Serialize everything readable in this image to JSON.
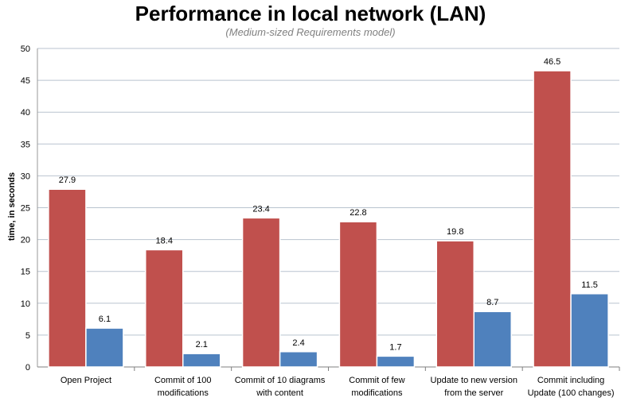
{
  "chart_data": {
    "type": "bar",
    "title": "Performance in local network (LAN)",
    "subtitle": "(Medium-sized Requirements model)",
    "xlabel": "",
    "ylabel": "time, in seconds",
    "ylim": [
      0,
      50
    ],
    "yticks": [
      "0",
      "5",
      "10",
      "15",
      "20",
      "25",
      "30",
      "35",
      "40",
      "45",
      "50"
    ],
    "grid": true,
    "categories": [
      [
        "Open Project"
      ],
      [
        "Commit of 100",
        "modifications"
      ],
      [
        "Commit of 10 diagrams",
        "with content"
      ],
      [
        "Commit of few",
        "modifications"
      ],
      [
        "Update to new version",
        "from the server"
      ],
      [
        "Commit including",
        "Update (100 changes)"
      ]
    ],
    "series": [
      {
        "color": "#c0504d",
        "values": [
          27.9,
          18.4,
          23.4,
          22.8,
          19.8,
          46.5
        ],
        "labels": [
          "27.9",
          "18.4",
          "23.4",
          "22.8",
          "19.8",
          "46.5"
        ]
      },
      {
        "color": "#4f81bd",
        "values": [
          6.1,
          2.1,
          2.4,
          1.7,
          8.7,
          11.5
        ],
        "labels": [
          "6.1",
          "2.1",
          "2.4",
          "1.7",
          "8.7",
          "11.5"
        ]
      }
    ]
  }
}
